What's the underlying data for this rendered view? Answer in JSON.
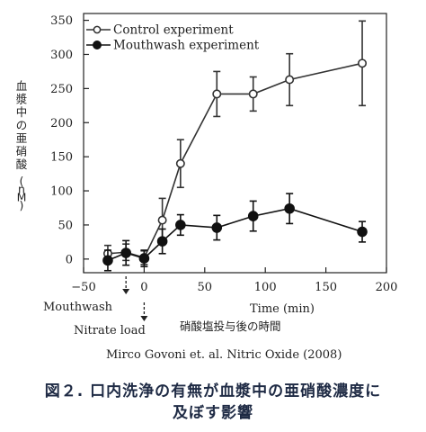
{
  "chart_data": {
    "type": "line",
    "x": [
      -30,
      -15,
      0,
      15,
      30,
      60,
      90,
      120,
      180
    ],
    "series": [
      {
        "name": "Control experiment",
        "marker": "open-circle",
        "color": "#333333",
        "values": [
          8,
          10,
          2,
          57,
          140,
          242,
          242,
          263,
          287
        ],
        "error": [
          12,
          12,
          10,
          32,
          35,
          33,
          25,
          38,
          62
        ]
      },
      {
        "name": "Mouthwash experiment",
        "marker": "filled-circle",
        "color": "#111111",
        "values": [
          -2,
          9,
          1,
          26,
          50,
          46,
          63,
          74,
          40
        ],
        "error": [
          15,
          18,
          12,
          18,
          15,
          18,
          22,
          22,
          15
        ]
      }
    ],
    "xlim": [
      -50,
      200
    ],
    "ylim": [
      -20,
      360
    ],
    "xticks": [
      "-50",
      "0",
      "50",
      "100",
      "150",
      "200"
    ],
    "xtick_values": [
      -50,
      0,
      50,
      100,
      150,
      200
    ],
    "yticks": [
      "0",
      "50",
      "100",
      "150",
      "200",
      "250",
      "300",
      "350"
    ],
    "ytick_values": [
      0,
      50,
      100,
      150,
      200,
      250,
      300,
      350
    ],
    "xlabel": "Time (min)",
    "xlabel_jp": "硝酸塩投与後の時間",
    "ylabel": "血漿中の亜硝酸 (nM)",
    "legend_position": "top-left",
    "annotations": [
      {
        "text": "Mouthwash",
        "x": -15
      },
      {
        "text": "Nitrate load",
        "x": 0
      }
    ]
  },
  "source": "Mirco Govoni et. al. Nitric Oxide (2008)",
  "caption": {
    "line1": "図２.  口内洗浄の有無が血漿中の亜硝酸濃度に",
    "line2": "及ぼす影響"
  }
}
